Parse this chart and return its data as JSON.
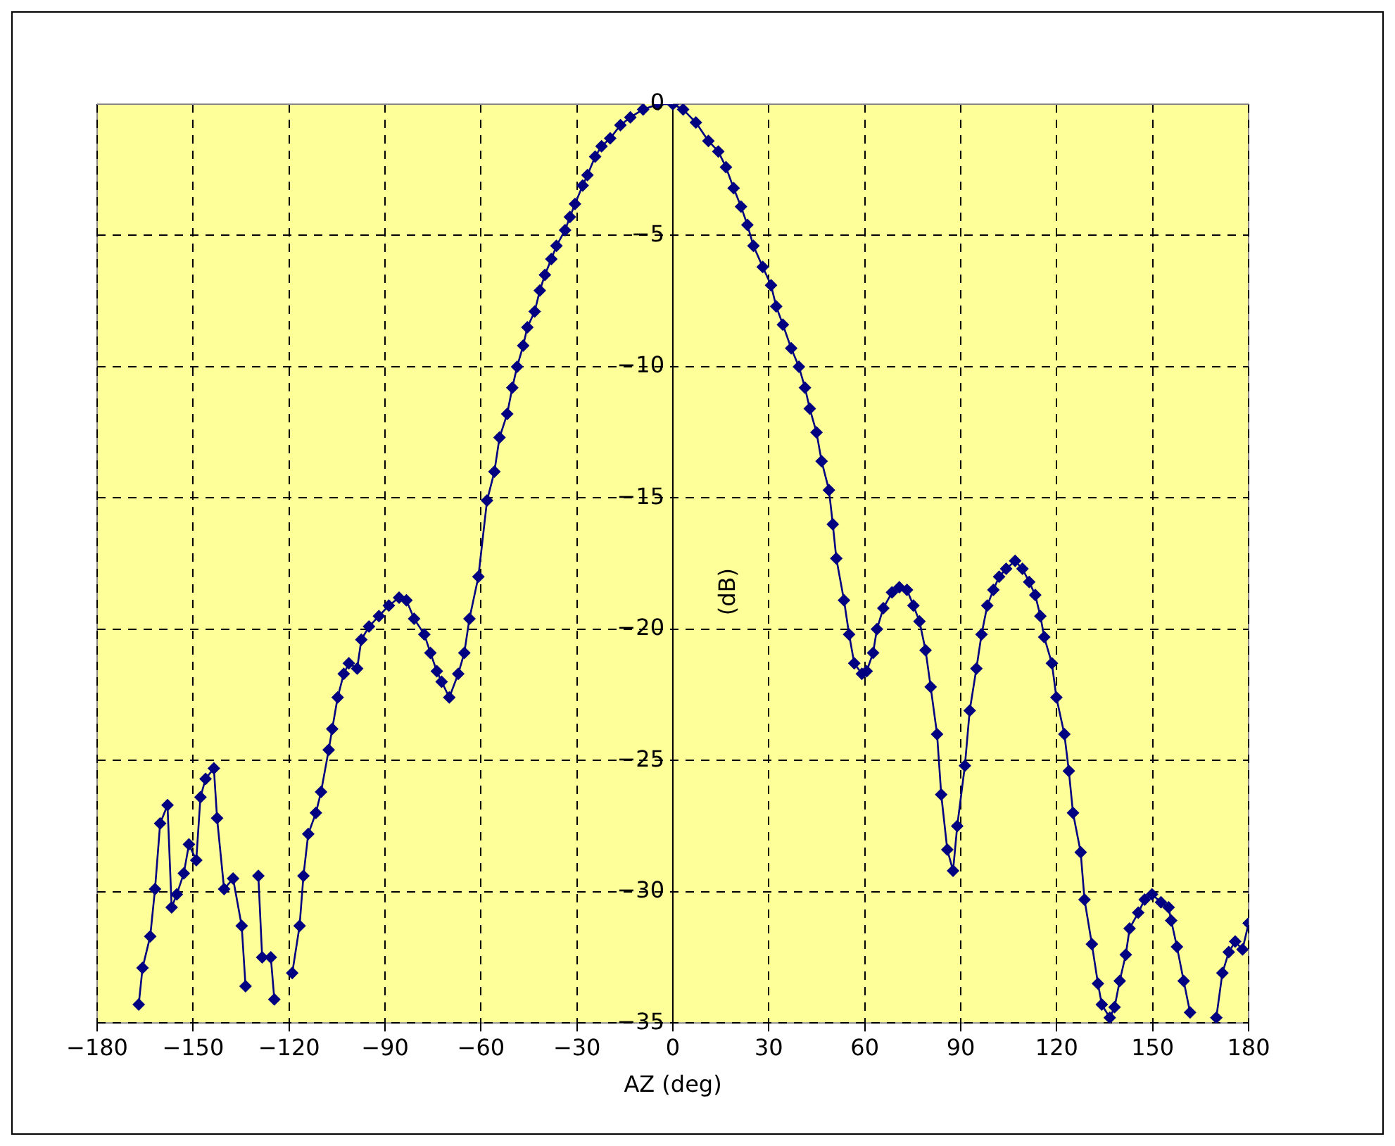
{
  "chart_data": {
    "type": "line",
    "xlabel": "AZ (deg)",
    "ylabel": "(dB)",
    "xlim": [
      -180,
      180
    ],
    "xticks": [
      -180,
      -150,
      -120,
      -90,
      -60,
      -30,
      0,
      30,
      60,
      90,
      120,
      150,
      180
    ],
    "ylim": [
      -35,
      0
    ],
    "yticks": [
      0,
      -5,
      -10,
      -15,
      -20,
      -25,
      -30,
      -35
    ],
    "grid": true,
    "marker": "diamond",
    "line_style": "solid",
    "legend": false,
    "series": [
      {
        "color": "#000080",
        "x": [
          -167,
          -165.8,
          -163.4,
          -161.9,
          -160.3,
          -158,
          -156.7,
          -155.1,
          -152.9,
          -151.3,
          -149,
          -147.7,
          -146.1,
          -143.5,
          -142.5,
          -140.3,
          -137.5,
          -134.8,
          -133.6,
          -132,
          -129.6,
          -128.4,
          -125.7,
          -124.6,
          -122,
          -119,
          -116.7,
          -115.5,
          -114,
          -111.6,
          -110,
          -107.6,
          -106.5,
          -104.8,
          -102.9,
          -101.3,
          -98.7,
          -97.4,
          -95,
          -91.9,
          -88.8,
          -85.6,
          -83.3,
          -80.9,
          -77.7,
          -75.8,
          -73.8,
          -72.3,
          -69.9,
          -67.1,
          -65.2,
          -63.6,
          -60.8,
          -58.1,
          -55.8,
          -54.2,
          -51.8,
          -50.2,
          -48.7,
          -46.8,
          -45.5,
          -43.2,
          -41.6,
          -40,
          -38,
          -36.4,
          -33.7,
          -32.2,
          -30.6,
          -28.2,
          -26.7,
          -24.3,
          -22.3,
          -19.6,
          -16.4,
          -13.3,
          -9.3,
          -4.6,
          0,
          3.2,
          7.2,
          11.1,
          14.2,
          16.6,
          19,
          21.3,
          23.3,
          25.2,
          28.1,
          30.7,
          32.3,
          34.4,
          37,
          39.4,
          41.3,
          42.8,
          44.9,
          46.5,
          48.8,
          50,
          51.1,
          53.5,
          55.1,
          56.7,
          59.1,
          60.6,
          62.6,
          63.8,
          65.8,
          68.5,
          70.8,
          73.2,
          75.2,
          77.1,
          79,
          80.6,
          82.6,
          83.9,
          85.8,
          87.6,
          88.9,
          91.3,
          92.8,
          94.9,
          96.5,
          98.3,
          100.2,
          102,
          104.2,
          107,
          109.3,
          111.4,
          113.3,
          114.9,
          116.1,
          118.5,
          119.9,
          122.4,
          123.8,
          125.1,
          127.5,
          128.7,
          131,
          132.9,
          134.1,
          136.6,
          138.1,
          139.7,
          141.6,
          142.8,
          145.5,
          147.5,
          149.8,
          152.6,
          155,
          155.8,
          157.6,
          159.7,
          161.7,
          165,
          169.9,
          171.8,
          173.8,
          175.8,
          178.1,
          180
        ],
        "values": [
          -34.3,
          -32.9,
          -31.7,
          -29.9,
          -27.4,
          -26.7,
          -30.6,
          -30.1,
          -29.3,
          -28.2,
          -28.8,
          -26.4,
          -25.7,
          -25.3,
          -27.2,
          -29.9,
          -29.5,
          -31.3,
          -33.6,
          null,
          -29.4,
          -32.5,
          -32.5,
          -34.1,
          null,
          -33.1,
          -31.3,
          -29.4,
          -27.8,
          -27,
          -26.2,
          -24.6,
          -23.8,
          -22.6,
          -21.7,
          -21.3,
          -21.5,
          -20.4,
          -19.9,
          -19.5,
          -19.1,
          -18.8,
          -18.9,
          -19.6,
          -20.2,
          -20.9,
          -21.6,
          -22,
          -22.6,
          -21.7,
          -20.9,
          -19.6,
          -18,
          -15.1,
          -14,
          -12.7,
          -11.8,
          -10.8,
          -10,
          -9.2,
          -8.5,
          -7.9,
          -7.1,
          -6.5,
          -5.9,
          -5.4,
          -4.8,
          -4.3,
          -3.8,
          -3.1,
          -2.7,
          -2,
          -1.6,
          -1.3,
          -0.8,
          -0.5,
          -0.2,
          0,
          0,
          -0.2,
          -0.7,
          -1.4,
          -1.8,
          -2.4,
          -3.2,
          -3.9,
          -4.6,
          -5.4,
          -6.2,
          -6.9,
          -7.7,
          -8.4,
          -9.3,
          -10,
          -10.8,
          -11.6,
          -12.5,
          -13.6,
          -14.7,
          -16,
          -17.3,
          -18.9,
          -20.2,
          -21.3,
          -21.7,
          -21.6,
          -20.9,
          -20,
          -19.2,
          -18.6,
          -18.4,
          -18.5,
          -19.1,
          -19.7,
          -20.8,
          -22.2,
          -24,
          -26.3,
          -28.4,
          -29.2,
          -27.5,
          -25.2,
          -23.1,
          -21.5,
          -20.2,
          -19.1,
          -18.5,
          -18,
          -17.7,
          -17.4,
          -17.7,
          -18.2,
          -18.7,
          -19.5,
          -20.3,
          -21.3,
          -22.6,
          -24,
          -25.4,
          -27,
          -28.5,
          -30.3,
          -32,
          -33.5,
          -34.3,
          -34.8,
          -34.4,
          -33.4,
          -32.4,
          -31.4,
          -30.8,
          -30.3,
          -30.1,
          -30.4,
          -30.6,
          -31.1,
          -32.1,
          -33.4,
          -34.6,
          null,
          -34.8,
          -33.1,
          -32.3,
          -31.9,
          -32.2,
          -31.2
        ]
      }
    ]
  }
}
